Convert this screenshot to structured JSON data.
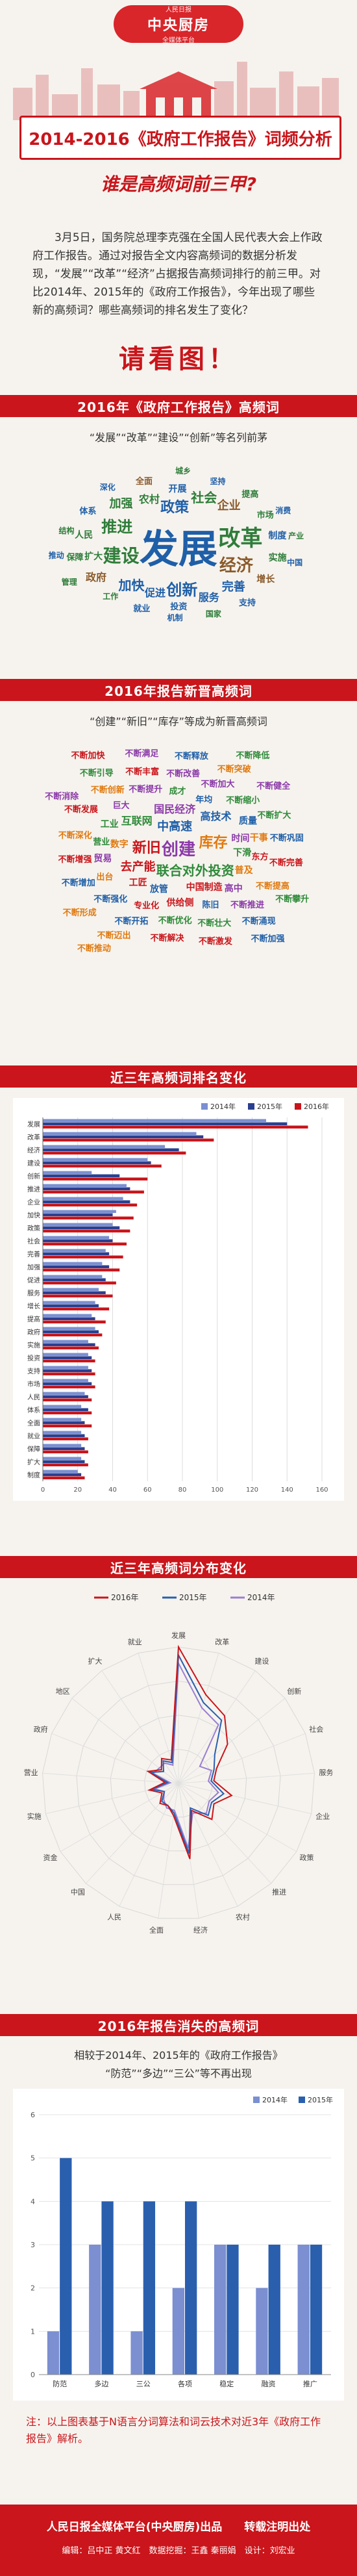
{
  "header": {
    "brand_top": "人民日报",
    "brand_main": "中央厨房",
    "brand_sub": "全媒体平台",
    "title": "2014-2016《政府工作报告》词频分析",
    "subtitle": "谁是高频词前三甲?"
  },
  "intro": "3月5日，国务院总理李克强在全国人民代表大会上作政府工作报告。通过对报告全文内容高频词的数据分析发现，“发展”“改革”“经济”占据报告高频词排行的前三甲。对比2014年、2015年的《政府工作报告》，今年出现了哪些新的高频词？哪些高频词的排名发生了变化？",
  "please_see": "请看图！",
  "sections": {
    "s1_title": "2016年《政府工作报告》高频词",
    "s1_desc": "“发展”“改革”“建设”“创新”等名列前茅",
    "s2_title": "2016年报告新晋高频词",
    "s2_desc": "“创建”“新旧”“库存”等成为新晋高频词",
    "s3_title": "近三年高频词排名变化",
    "s4_title": "近三年高频词分布变化",
    "s5_title": "2016年报告消失的高频词",
    "s5_desc1": "相较于2014年、2015年的《政府工作报告》",
    "s5_desc2": "“防范”“多边”“三公”等不再出现"
  },
  "cloud1": [
    {
      "text": "发展",
      "c": "#1f5fa8",
      "s": 60
    },
    {
      "text": "改革",
      "c": "#2f7d3a",
      "s": 34
    },
    {
      "text": "建设",
      "c": "#2f7d3a",
      "s": 28
    },
    {
      "text": "经济",
      "c": "#8a5a2b",
      "s": 26
    },
    {
      "text": "创新",
      "c": "#1f5fa8",
      "s": 24
    },
    {
      "text": "推进",
      "c": "#2f7d3a",
      "s": 24
    },
    {
      "text": "政策",
      "c": "#1f5fa8",
      "s": 22
    },
    {
      "text": "加快",
      "c": "#1f5fa8",
      "s": 20
    },
    {
      "text": "社会",
      "c": "#2f7d3a",
      "s": 20
    },
    {
      "text": "企业",
      "c": "#8a5a2b",
      "s": 18
    },
    {
      "text": "完善",
      "c": "#1f5fa8",
      "s": 18
    },
    {
      "text": "加强",
      "c": "#2f7d3a",
      "s": 18
    },
    {
      "text": "促进",
      "c": "#1f5fa8",
      "s": 16
    },
    {
      "text": "农村",
      "c": "#2f7d3a",
      "s": 16
    },
    {
      "text": "服务",
      "c": "#1f5fa8",
      "s": 16
    },
    {
      "text": "政府",
      "c": "#8a5a2b",
      "s": 16
    },
    {
      "text": "扩大",
      "c": "#2f7d3a",
      "s": 14
    },
    {
      "text": "开展",
      "c": "#1f5fa8",
      "s": 14
    },
    {
      "text": "人民",
      "c": "#2f7d3a",
      "s": 14
    },
    {
      "text": "制度",
      "c": "#1f5fa8",
      "s": 14
    },
    {
      "text": "实施",
      "c": "#2f7d3a",
      "s": 14
    },
    {
      "text": "增长",
      "c": "#8a5a2b",
      "s": 14
    },
    {
      "text": "投资",
      "c": "#1f5fa8",
      "s": 13
    },
    {
      "text": "市场",
      "c": "#2f7d3a",
      "s": 13
    },
    {
      "text": "就业",
      "c": "#1f5fa8",
      "s": 13
    },
    {
      "text": "保障",
      "c": "#2f7d3a",
      "s": 13
    },
    {
      "text": "体系",
      "c": "#1f5fa8",
      "s": 13
    },
    {
      "text": "全面",
      "c": "#8a5a2b",
      "s": 13
    },
    {
      "text": "提高",
      "c": "#2f7d3a",
      "s": 13
    },
    {
      "text": "支持",
      "c": "#1f5fa8",
      "s": 13
    },
    {
      "text": "工作",
      "c": "#2f7d3a",
      "s": 12
    },
    {
      "text": "坚持",
      "c": "#1f5fa8",
      "s": 12
    },
    {
      "text": "国家",
      "c": "#2f7d3a",
      "s": 12
    },
    {
      "text": "机制",
      "c": "#1f5fa8",
      "s": 12
    },
    {
      "text": "结构",
      "c": "#2f7d3a",
      "s": 12
    },
    {
      "text": "深化",
      "c": "#1f5fa8",
      "s": 12
    },
    {
      "text": "城乡",
      "c": "#2f7d3a",
      "s": 12
    },
    {
      "text": "消费",
      "c": "#1f5fa8",
      "s": 12
    },
    {
      "text": "产业",
      "c": "#2f7d3a",
      "s": 12
    },
    {
      "text": "中国",
      "c": "#1f5fa8",
      "s": 12
    },
    {
      "text": "管理",
      "c": "#2f7d3a",
      "s": 12
    },
    {
      "text": "推动",
      "c": "#1f5fa8",
      "s": 12
    }
  ],
  "cloud2": [
    {
      "text": "创建",
      "c": "#8b3aa8",
      "s": 26
    },
    {
      "text": "新旧",
      "c": "#c9151b",
      "s": 22
    },
    {
      "text": "库存",
      "c": "#e07a10",
      "s": 22
    },
    {
      "text": "联合对外投资",
      "c": "#2f8a3a",
      "s": 20
    },
    {
      "text": "中高速",
      "c": "#1f5fa8",
      "s": 18
    },
    {
      "text": "去产能",
      "c": "#c9151b",
      "s": 18
    },
    {
      "text": "国民经济",
      "c": "#8b3aa8",
      "s": 16
    },
    {
      "text": "互联网",
      "c": "#2f8a3a",
      "s": 16
    },
    {
      "text": "高技术",
      "c": "#1f5fa8",
      "s": 16
    },
    {
      "text": "中国制造",
      "c": "#c9151b",
      "s": 14
    },
    {
      "text": "数字",
      "c": "#e07a10",
      "s": 14
    },
    {
      "text": "时间",
      "c": "#8b3aa8",
      "s": 14
    },
    {
      "text": "下滑",
      "c": "#2f8a3a",
      "s": 14
    },
    {
      "text": "放管",
      "c": "#1f5fa8",
      "s": 14
    },
    {
      "text": "工匠",
      "c": "#c9151b",
      "s": 14
    },
    {
      "text": "普及",
      "c": "#e07a10",
      "s": 14
    },
    {
      "text": "贸易",
      "c": "#8b3aa8",
      "s": 14
    },
    {
      "text": "工业",
      "c": "#2f8a3a",
      "s": 14
    },
    {
      "text": "质量",
      "c": "#1f5fa8",
      "s": 14
    },
    {
      "text": "供给侧",
      "c": "#c9151b",
      "s": 14
    },
    {
      "text": "干事",
      "c": "#e07a10",
      "s": 14
    },
    {
      "text": "高中",
      "c": "#8b3aa8",
      "s": 14
    },
    {
      "text": "营业",
      "c": "#2f8a3a",
      "s": 13
    },
    {
      "text": "年均",
      "c": "#1f5fa8",
      "s": 13
    },
    {
      "text": "东方",
      "c": "#c9151b",
      "s": 13
    },
    {
      "text": "出台",
      "c": "#e07a10",
      "s": 13
    },
    {
      "text": "巨大",
      "c": "#8b3aa8",
      "s": 13
    },
    {
      "text": "成才",
      "c": "#2f8a3a",
      "s": 13
    },
    {
      "text": "陈旧",
      "c": "#1f5fa8",
      "s": 13
    },
    {
      "text": "专业化",
      "c": "#c9151b",
      "s": 13
    },
    {
      "text": "不断提升",
      "c": "#8b3aa8",
      "s": 13
    },
    {
      "text": "不断缩小",
      "c": "#2f8a3a",
      "s": 13
    },
    {
      "text": "不断强化",
      "c": "#1f5fa8",
      "s": 13
    },
    {
      "text": "不断增强",
      "c": "#c9151b",
      "s": 13
    },
    {
      "text": "不断深化",
      "c": "#e07a10",
      "s": 13
    },
    {
      "text": "不断加大",
      "c": "#8b3aa8",
      "s": 13
    },
    {
      "text": "不断扩大",
      "c": "#2f8a3a",
      "s": 13
    },
    {
      "text": "不断巩固",
      "c": "#1f5fa8",
      "s": 13
    },
    {
      "text": "不断完善",
      "c": "#c9151b",
      "s": 13
    },
    {
      "text": "不断提高",
      "c": "#e07a10",
      "s": 13
    },
    {
      "text": "不断推进",
      "c": "#8b3aa8",
      "s": 13
    },
    {
      "text": "不断优化",
      "c": "#2f8a3a",
      "s": 13
    },
    {
      "text": "不断增加",
      "c": "#1f5fa8",
      "s": 13
    },
    {
      "text": "不断发展",
      "c": "#c9151b",
      "s": 13
    },
    {
      "text": "不断创新",
      "c": "#e07a10",
      "s": 13
    },
    {
      "text": "不断改善",
      "c": "#8b3aa8",
      "s": 13
    },
    {
      "text": "不断壮大",
      "c": "#2f8a3a",
      "s": 13
    },
    {
      "text": "不断开拓",
      "c": "#1f5fa8",
      "s": 13
    },
    {
      "text": "不断丰富",
      "c": "#c9151b",
      "s": 13
    },
    {
      "text": "不断突破",
      "c": "#e07a10",
      "s": 13
    },
    {
      "text": "不断健全",
      "c": "#8b3aa8",
      "s": 13
    },
    {
      "text": "不断攀升",
      "c": "#2f8a3a",
      "s": 13
    },
    {
      "text": "不断涌现",
      "c": "#1f5fa8",
      "s": 13
    },
    {
      "text": "不断解决",
      "c": "#c9151b",
      "s": 13
    },
    {
      "text": "不断形成",
      "c": "#e07a10",
      "s": 13
    },
    {
      "text": "不断消除",
      "c": "#8b3aa8",
      "s": 13
    },
    {
      "text": "不断引导",
      "c": "#2f8a3a",
      "s": 13
    },
    {
      "text": "不断释放",
      "c": "#1f5fa8",
      "s": 13
    },
    {
      "text": "不断激发",
      "c": "#c9151b",
      "s": 13
    },
    {
      "text": "不断迈出",
      "c": "#e07a10",
      "s": 13
    },
    {
      "text": "不断满足",
      "c": "#8b3aa8",
      "s": 13
    },
    {
      "text": "不断降低",
      "c": "#2f8a3a",
      "s": 13
    },
    {
      "text": "不断加强",
      "c": "#1f5fa8",
      "s": 13
    },
    {
      "text": "不断加快",
      "c": "#c9151b",
      "s": 13
    },
    {
      "text": "不断推动",
      "c": "#e07a10",
      "s": 13
    },
    {
      "text": "不断采取",
      "c": "#8b3aa8",
      "s": 13
    },
    {
      "text": "不断扩展",
      "c": "#2f8a3a",
      "s": 13
    },
    {
      "text": "不断创造",
      "c": "#1f5fa8",
      "s": 13
    },
    {
      "text": "不断取得",
      "c": "#c9151b",
      "s": 13
    },
    {
      "text": "不断显现",
      "c": "#e07a10",
      "s": 13
    },
    {
      "text": "不断培育",
      "c": "#8b3aa8",
      "s": 13
    },
    {
      "text": "不断增长",
      "c": "#2f8a3a",
      "s": 13
    },
    {
      "text": "不断拓宽",
      "c": "#1f5fa8",
      "s": 13
    },
    {
      "text": "不断扩容",
      "c": "#c9151b",
      "s": 13
    },
    {
      "text": "不断提速",
      "c": "#e07a10",
      "s": 13
    },
    {
      "text": "不断规范",
      "c": "#8b3aa8",
      "s": 13
    },
    {
      "text": "不断调整",
      "c": "#2f8a3a",
      "s": 13
    },
    {
      "text": "不断促进",
      "c": "#1f5fa8",
      "s": 13
    }
  ],
  "chart_data": [
    {
      "type": "bar",
      "orientation": "horizontal",
      "title": "近三年高频词排名变化",
      "categories": [
        "发展",
        "改革",
        "经济",
        "建设",
        "创新",
        "推进",
        "企业",
        "加快",
        "政策",
        "社会",
        "完善",
        "加强",
        "促进",
        "服务",
        "增长",
        "提高",
        "政府",
        "实施",
        "投资",
        "支持",
        "市场",
        "人民",
        "体系",
        "全面",
        "就业",
        "保障",
        "扩大",
        "制度"
      ],
      "series": [
        {
          "name": "2014年",
          "color": "#7b8fd1",
          "values": [
            128,
            88,
            70,
            60,
            28,
            48,
            46,
            42,
            40,
            38,
            36,
            34,
            34,
            32,
            30,
            28,
            30,
            26,
            26,
            26,
            26,
            24,
            22,
            22,
            22,
            22,
            22,
            20
          ]
        },
        {
          "name": "2015年",
          "color": "#2a3f8f",
          "values": [
            140,
            92,
            78,
            62,
            44,
            50,
            50,
            40,
            44,
            40,
            38,
            38,
            36,
            36,
            32,
            30,
            32,
            30,
            28,
            28,
            28,
            26,
            26,
            24,
            24,
            24,
            24,
            22
          ]
        },
        {
          "name": "2016年",
          "color": "#c9151b",
          "values": [
            152,
            98,
            82,
            68,
            60,
            58,
            54,
            52,
            50,
            48,
            46,
            44,
            42,
            40,
            38,
            36,
            34,
            32,
            30,
            30,
            30,
            28,
            28,
            28,
            26,
            26,
            26,
            24
          ]
        }
      ],
      "xlim": [
        0,
        160
      ],
      "xticks": [
        0,
        20,
        40,
        60,
        80,
        100,
        120,
        140,
        160
      ],
      "legend_position": "top-right"
    },
    {
      "type": "radar",
      "title": "近三年高频词分布变化",
      "categories": [
        "发展",
        "改革",
        "建设",
        "创新",
        "社会",
        "服务",
        "企业",
        "政策",
        "推进",
        "农村",
        "经济",
        "全面",
        "人民",
        "中国",
        "资金",
        "实施",
        "营业",
        "政府",
        "地区",
        "扩大",
        "就业"
      ],
      "series": [
        {
          "name": "2016年",
          "color": "#c9151b",
          "values": [
            100,
            68,
            60,
            46,
            30,
            26,
            40,
            30,
            36,
            22,
            56,
            24,
            18,
            20,
            14,
            22,
            10,
            24,
            16,
            22,
            18
          ]
        },
        {
          "name": "2015年",
          "color": "#2a5fae",
          "values": [
            94,
            62,
            56,
            34,
            28,
            24,
            34,
            28,
            32,
            20,
            52,
            22,
            18,
            18,
            12,
            20,
            8,
            22,
            14,
            20,
            16
          ]
        },
        {
          "name": "2014年",
          "color": "#9a7fd0",
          "values": [
            88,
            58,
            52,
            20,
            26,
            22,
            30,
            26,
            30,
            24,
            48,
            20,
            20,
            16,
            12,
            18,
            6,
            20,
            18,
            18,
            14
          ]
        }
      ],
      "rmax": 100,
      "legend_position": "top"
    },
    {
      "type": "bar",
      "orientation": "vertical",
      "title": "2016年报告消失的高频词",
      "categories": [
        "防范",
        "多边",
        "三公",
        "各项",
        "稳定",
        "融资",
        "推广"
      ],
      "series": [
        {
          "name": "2014年",
          "color": "#7b8fd1",
          "values": [
            1,
            3,
            1,
            2,
            3,
            2,
            3
          ]
        },
        {
          "name": "2015年",
          "color": "#2a5fae",
          "values": [
            5,
            4,
            4,
            4,
            3,
            3,
            3
          ]
        }
      ],
      "ylim": [
        0,
        6
      ],
      "yticks": [
        0,
        1,
        2,
        3,
        4,
        5,
        6
      ],
      "legend_position": "top-right"
    }
  ],
  "note": "注：以上图表基于N语言分词算法和词云技术对近3年《政府工作报告》解析。",
  "footer": {
    "line1": "人民日报全媒体平台(中央厨房)出品　　转载注明出处",
    "line2": "编辑：吕中正  黄文红　数据挖掘：王鑫  秦丽娟　设计：刘宏业"
  }
}
